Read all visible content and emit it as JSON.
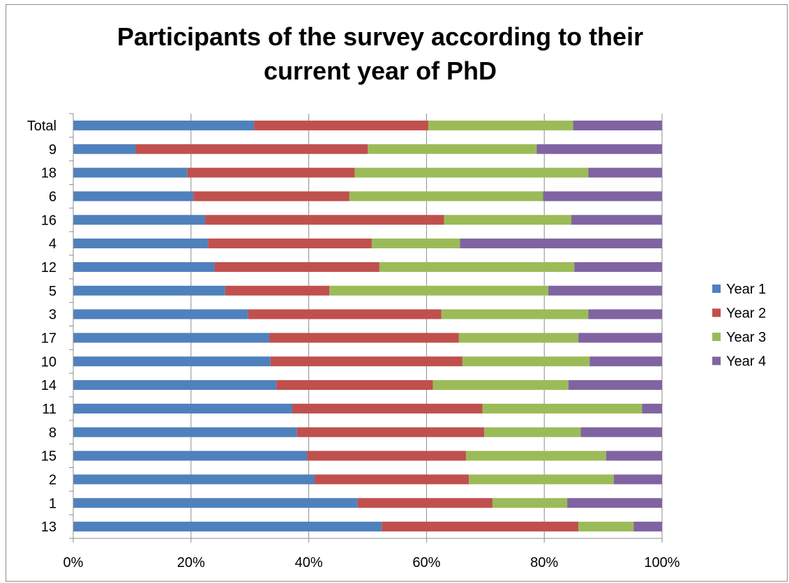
{
  "chart_data": {
    "type": "bar",
    "orientation": "horizontal",
    "stacked": "percent",
    "title": "Participants of the survey according to their current year of PhD",
    "categories": [
      "Total",
      "9",
      "18",
      "6",
      "16",
      "4",
      "12",
      "5",
      "3",
      "17",
      "10",
      "14",
      "11",
      "8",
      "15",
      "2",
      "1",
      "13"
    ],
    "series": [
      {
        "name": "Year 1",
        "color": "#4f81bd",
        "values": [
          30.7,
          10.6,
          19.4,
          20.4,
          22.4,
          22.9,
          24.0,
          25.8,
          29.7,
          33.3,
          33.5,
          34.5,
          37.2,
          38.0,
          39.7,
          41.0,
          48.3,
          52.4
        ]
      },
      {
        "name": "Year 2",
        "color": "#c0504d",
        "values": [
          29.6,
          39.4,
          28.4,
          26.5,
          40.6,
          27.8,
          28.0,
          17.7,
          32.8,
          32.2,
          32.6,
          26.6,
          32.3,
          31.8,
          27.0,
          26.2,
          22.9,
          33.4
        ]
      },
      {
        "name": "Year 3",
        "color": "#9bbb59",
        "values": [
          24.6,
          28.7,
          39.7,
          32.9,
          21.6,
          15.0,
          33.1,
          37.2,
          25.0,
          20.3,
          21.6,
          23.0,
          27.1,
          16.4,
          23.8,
          24.6,
          12.7,
          9.4
        ]
      },
      {
        "name": "Year 4",
        "color": "#8064a2",
        "values": [
          15.1,
          21.3,
          12.5,
          20.2,
          15.4,
          34.3,
          14.9,
          19.3,
          12.5,
          14.2,
          12.3,
          15.9,
          3.4,
          13.8,
          9.5,
          8.2,
          16.1,
          4.8
        ]
      }
    ],
    "xlim": [
      0,
      100
    ],
    "x_ticks": [
      "0%",
      "20%",
      "40%",
      "60%",
      "80%",
      "100%"
    ],
    "grid": "vertical",
    "legend": "right"
  }
}
